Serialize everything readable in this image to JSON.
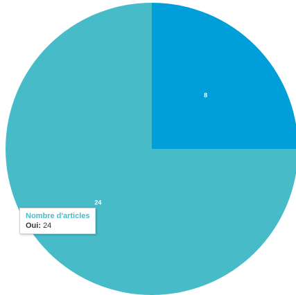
{
  "chart_data": {
    "type": "pie",
    "series_name": "Nombre d'articles",
    "slices": [
      {
        "label": "",
        "value": 8,
        "color": "#009fd9"
      },
      {
        "label": "Oui",
        "value": 24,
        "color": "#47bbc8"
      }
    ]
  },
  "tooltip": {
    "title": "Nombre d'articles",
    "key": "Oui:",
    "value": "24"
  }
}
